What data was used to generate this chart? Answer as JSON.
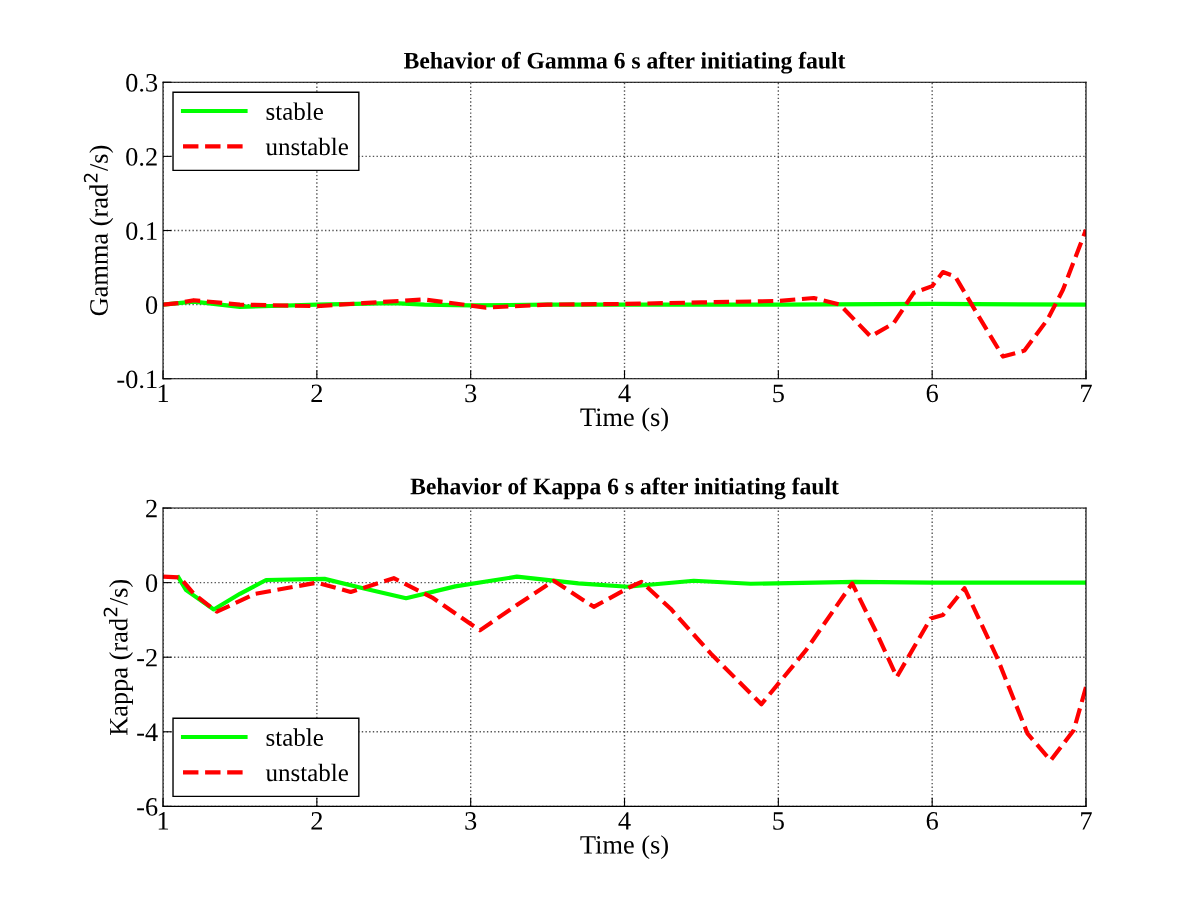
{
  "chart_data": [
    {
      "type": "line",
      "title": "Behavior of Gamma 6 s after initiating fault",
      "xlabel": "Time (s)",
      "ylabel": "Gamma (rad$^{2}$/s)",
      "xlim": [
        1,
        7
      ],
      "ylim": [
        -0.1,
        0.3
      ],
      "xticks": [
        1,
        2,
        3,
        4,
        5,
        6,
        7
      ],
      "yticks": [
        -0.1,
        0,
        0.1,
        0.2,
        0.3
      ],
      "grid": true,
      "legend": "top left",
      "series": [
        {
          "name": "stable",
          "color": "#00ff00",
          "line_style": "solid",
          "x": [
            1,
            1.2,
            1.5,
            2,
            2.5,
            2.7,
            3,
            3.5,
            4,
            5,
            6,
            7
          ],
          "values": [
            0,
            0.004,
            -0.003,
            0,
            0.002,
            0,
            -0.001,
            0,
            0,
            0,
            0.001,
            0
          ]
        },
        {
          "name": "unstable",
          "color": "#ff0000",
          "line_style": "dashed",
          "x": [
            1,
            1.1,
            1.2,
            1.5,
            2,
            2.3,
            2.7,
            3.1,
            3.5,
            4,
            4.5,
            5,
            5.23,
            5.4,
            5.6,
            5.75,
            5.88,
            6.0,
            6.07,
            6.15,
            6.3,
            6.46,
            6.6,
            6.75,
            6.85,
            7.0
          ],
          "values": [
            0,
            0.002,
            0.006,
            0,
            -0.002,
            0.002,
            0.007,
            -0.004,
            0,
            0.001,
            0.003,
            0.005,
            0.009,
            0.0,
            -0.043,
            -0.025,
            0.016,
            0.025,
            0.044,
            0.038,
            -0.015,
            -0.07,
            -0.062,
            -0.02,
            0.02,
            0.101
          ]
        }
      ]
    },
    {
      "type": "line",
      "title": "Behavior of Kappa 6 s after initiating fault",
      "xlabel": "Time (s)",
      "ylabel": "Kappa (rad$^{2}$/s)",
      "xlim": [
        1,
        7
      ],
      "ylim": [
        -6,
        2
      ],
      "xticks": [
        1,
        2,
        3,
        4,
        5,
        6,
        7
      ],
      "yticks": [
        -6,
        -4,
        -2,
        0,
        2
      ],
      "grid": true,
      "legend": "bottom left",
      "series": [
        {
          "name": "stable",
          "color": "#00ff00",
          "line_style": "solid",
          "x": [
            1.1,
            1.15,
            1.33,
            1.5,
            1.67,
            2.05,
            2.3,
            2.58,
            2.9,
            3.3,
            3.7,
            4.02,
            4.45,
            4.82,
            5.5,
            6,
            7
          ],
          "values": [
            0.14,
            -0.2,
            -0.72,
            -0.3,
            0.07,
            0.1,
            -0.15,
            -0.42,
            -0.1,
            0.16,
            -0.02,
            -0.11,
            0.05,
            -0.03,
            0.02,
            0,
            0
          ]
        },
        {
          "name": "unstable",
          "color": "#ff0000",
          "line_style": "dashed",
          "x": [
            1,
            1.11,
            1.2,
            1.35,
            1.6,
            2.0,
            2.22,
            2.5,
            2.75,
            3.06,
            3.3,
            3.54,
            3.8,
            4.04,
            4.11,
            4.3,
            4.56,
            4.89,
            5.18,
            5.48,
            5.64,
            5.77,
            5.99,
            6.07,
            6.21,
            6.42,
            6.62,
            6.77,
            6.92,
            7.0
          ],
          "values": [
            0.16,
            0.14,
            -0.3,
            -0.78,
            -0.3,
            0,
            -0.25,
            0.12,
            -0.4,
            -1.28,
            -0.6,
            0.05,
            -0.65,
            -0.11,
            0.02,
            -0.7,
            -1.9,
            -3.26,
            -1.81,
            -0.02,
            -1.36,
            -2.53,
            -0.96,
            -0.87,
            -0.15,
            -1.99,
            -4.05,
            -4.77,
            -3.96,
            -2.8
          ]
        }
      ]
    }
  ]
}
